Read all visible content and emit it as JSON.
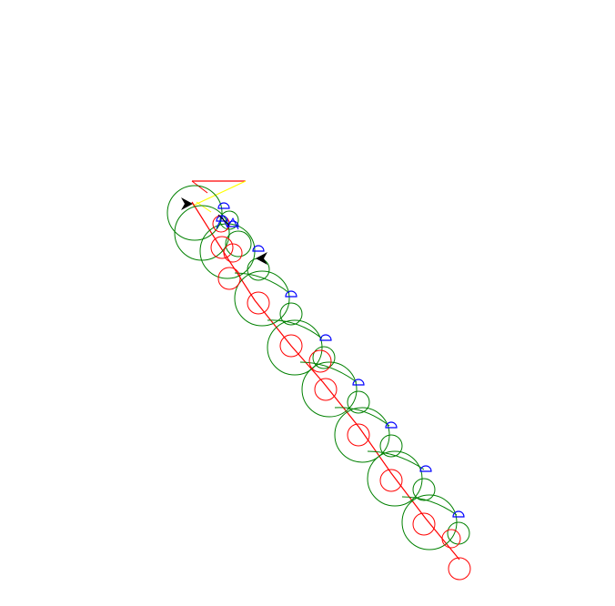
{
  "drawing": {
    "background": "#ffffff",
    "colors": {
      "red": "#ff0000",
      "green": "#008000",
      "blue": "#0000ff",
      "yellow": "#ffff00",
      "black": "#000000"
    },
    "icons": [
      "arrow-cursor-icon",
      "arrow-cursor-icon"
    ]
  }
}
